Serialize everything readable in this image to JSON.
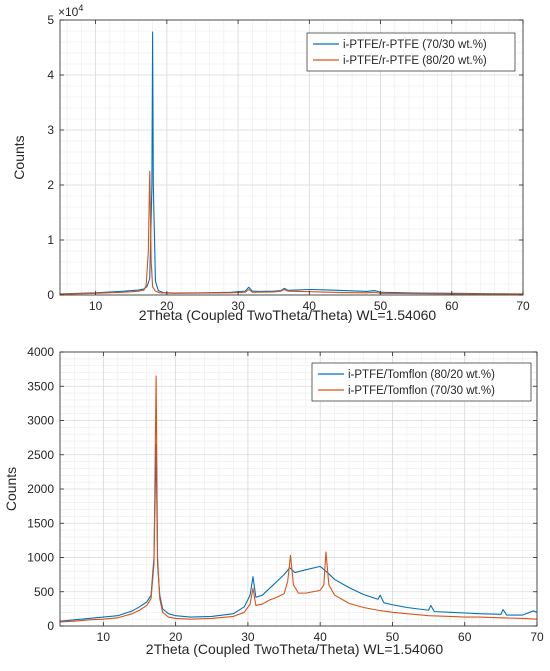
{
  "chart_data": [
    {
      "type": "line",
      "xlabel": "2Theta (Coupled TwoTheta/Theta) WL=1.54060",
      "ylabel": "Counts",
      "xlim": [
        5,
        70
      ],
      "ylim": [
        0,
        50000
      ],
      "xticks": [
        "10",
        "20",
        "30",
        "40",
        "50",
        "60",
        "70"
      ],
      "yticks": [
        "0",
        "1",
        "2",
        "3",
        "4",
        "5"
      ],
      "exponent_base": "×10",
      "exponent_power": "4",
      "grid": true,
      "legend_position": "top-right",
      "colors": [
        "#0072BD",
        "#D95319"
      ],
      "series": [
        {
          "name": "i-PTFE/r-PTFE (70/30 wt.%)",
          "x": [
            5,
            10,
            14,
            16,
            16.8,
            17.2,
            17.6,
            17.9,
            18.0,
            18.1,
            18.4,
            18.8,
            19.5,
            21,
            25,
            29,
            31.0,
            31.5,
            32.0,
            33,
            35,
            36.0,
            36.5,
            37.0,
            38,
            40,
            42,
            45,
            48,
            49.2,
            50,
            55,
            60,
            65,
            70
          ],
          "y": [
            200,
            400,
            700,
            900,
            1100,
            1500,
            3000,
            20000,
            47800,
            20000,
            2500,
            800,
            450,
            350,
            400,
            500,
            700,
            1400,
            700,
            650,
            700,
            800,
            1200,
            850,
            900,
            1000,
            950,
            800,
            650,
            800,
            500,
            350,
            300,
            250,
            200
          ]
        },
        {
          "name": "i-PTFE/r-PTFE (80/20 wt.%)",
          "x": [
            5,
            10,
            14,
            16,
            16.8,
            17.1,
            17.4,
            17.6,
            17.8,
            18.0,
            18.4,
            19.0,
            21,
            25,
            29,
            31.0,
            31.5,
            32.0,
            35,
            36.0,
            36.5,
            37.0,
            40,
            45,
            48,
            49.2,
            50,
            55,
            60,
            65,
            70
          ],
          "y": [
            150,
            300,
            500,
            700,
            900,
            1800,
            8000,
            22500,
            6000,
            1500,
            700,
            400,
            300,
            350,
            400,
            500,
            1000,
            500,
            550,
            700,
            1000,
            700,
            600,
            450,
            400,
            500,
            300,
            250,
            200,
            180,
            150
          ]
        }
      ]
    },
    {
      "type": "line",
      "xlabel": "2Theta (Coupled TwoTheta/Theta) WL=1.54060",
      "ylabel": "Counts",
      "xlim": [
        4,
        70
      ],
      "ylim": [
        0,
        4000
      ],
      "xticks": [
        "10",
        "20",
        "30",
        "40",
        "50",
        "60",
        "70"
      ],
      "yticks": [
        "0",
        "500",
        "1000",
        "1500",
        "2000",
        "2500",
        "3000",
        "3500",
        "4000"
      ],
      "grid": true,
      "legend_position": "top-right",
      "colors": [
        "#0072BD",
        "#D95319"
      ],
      "series": [
        {
          "name": "i-PTFE/Tomflon (80/20 wt.%)",
          "x": [
            4,
            6,
            8,
            10,
            12,
            14,
            15,
            16,
            16.6,
            17.0,
            17.3,
            17.5,
            17.8,
            18.2,
            19,
            20,
            22,
            25,
            28,
            29.5,
            30.3,
            30.7,
            31.1,
            32,
            33,
            34,
            35,
            35.8,
            36.5,
            38,
            40,
            41,
            42,
            44,
            46,
            48,
            48.3,
            48.8,
            50,
            52,
            55,
            55.3,
            55.8,
            58,
            60,
            62,
            65,
            65.3,
            65.8,
            68,
            69.5,
            70
          ],
          "y": [
            70,
            90,
            110,
            130,
            150,
            220,
            280,
            350,
            450,
            1000,
            2650,
            900,
            450,
            250,
            180,
            150,
            130,
            140,
            180,
            280,
            450,
            720,
            420,
            450,
            550,
            650,
            750,
            850,
            780,
            820,
            870,
            780,
            680,
            560,
            460,
            390,
            450,
            340,
            310,
            270,
            230,
            300,
            210,
            200,
            190,
            180,
            170,
            240,
            160,
            160,
            220,
            200
          ]
        },
        {
          "name": "i-PTFE/Tomflon (70/30 wt.%)",
          "x": [
            4,
            6,
            8,
            10,
            12,
            14,
            15,
            16,
            16.6,
            17.0,
            17.3,
            17.5,
            17.8,
            18.2,
            19,
            20,
            22,
            25,
            28,
            29.5,
            30.3,
            30.7,
            31.1,
            32,
            33,
            34,
            35,
            35.5,
            35.9,
            36.3,
            37,
            38,
            40,
            40.5,
            40.8,
            41.2,
            42,
            44,
            46,
            48,
            50,
            52,
            55,
            58,
            60,
            62,
            65,
            68,
            70
          ],
          "y": [
            60,
            70,
            90,
            100,
            120,
            180,
            230,
            300,
            400,
            900,
            3650,
            1000,
            400,
            200,
            130,
            110,
            100,
            110,
            140,
            200,
            320,
            550,
            300,
            320,
            380,
            420,
            470,
            650,
            1030,
            600,
            480,
            480,
            520,
            600,
            1080,
            600,
            450,
            330,
            270,
            230,
            200,
            180,
            150,
            140,
            130,
            130,
            120,
            110,
            100
          ]
        }
      ]
    }
  ]
}
